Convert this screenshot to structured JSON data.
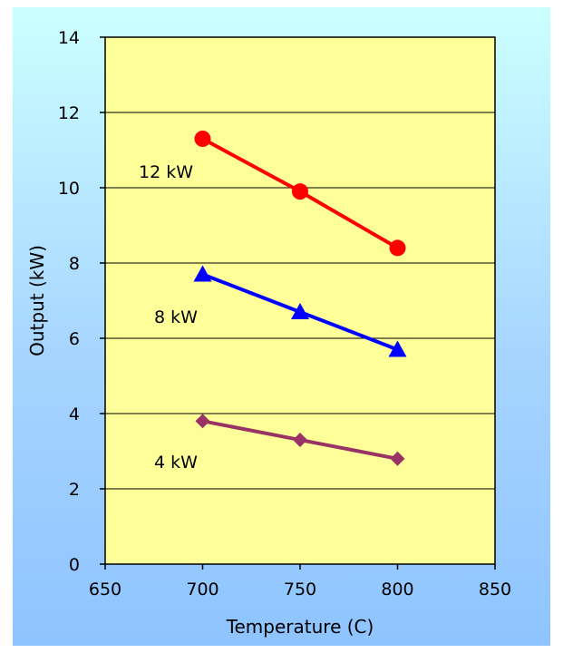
{
  "chart_data": {
    "type": "line",
    "xlabel": "Temperature (C)",
    "ylabel": "Output (kW)",
    "xlim": [
      650,
      850
    ],
    "ylim": [
      0,
      14
    ],
    "x_ticks": [
      650,
      700,
      750,
      800,
      850
    ],
    "y_ticks": [
      0,
      2,
      4,
      6,
      8,
      10,
      12,
      14
    ],
    "grid": "horizontal",
    "plot_background": "#ffff99",
    "series": [
      {
        "name": "12 kW",
        "color": "#ff0000",
        "marker": "circle",
        "x": [
          700,
          750,
          800
        ],
        "y": [
          11.3,
          9.9,
          8.4
        ]
      },
      {
        "name": "8 kW",
        "color": "#0000ff",
        "marker": "triangle",
        "x": [
          700,
          750,
          800
        ],
        "y": [
          7.7,
          6.7,
          5.7
        ]
      },
      {
        "name": "4 kW",
        "color": "#993366",
        "marker": "diamond",
        "x": [
          700,
          750,
          800
        ],
        "y": [
          3.8,
          3.3,
          2.8
        ]
      }
    ]
  }
}
